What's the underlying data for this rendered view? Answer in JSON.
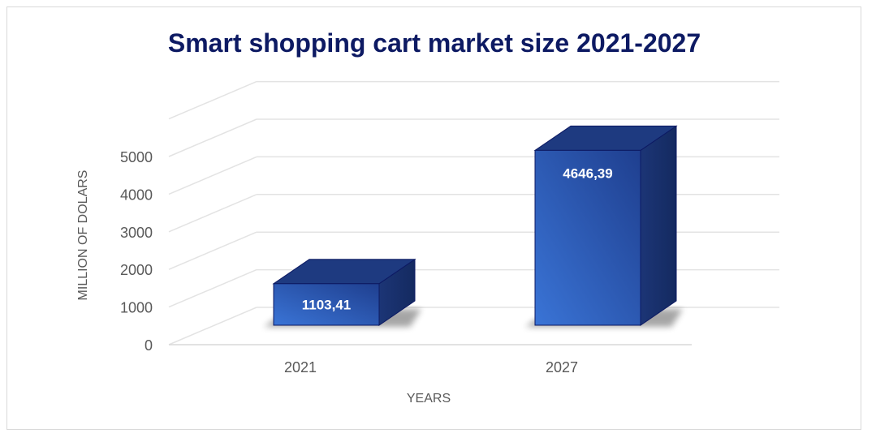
{
  "chart_data": {
    "type": "bar",
    "title": "Smart shopping cart market size 2021-2027",
    "xlabel": "YEARS",
    "ylabel": "MILLION OF DOLARS",
    "categories": [
      "2021",
      "2027"
    ],
    "values": [
      1103.41,
      4646.39
    ],
    "value_labels": [
      "1103,41",
      "4646,39"
    ],
    "ylim": [
      0,
      5000
    ],
    "yticks": [
      "0",
      "1000",
      "2000",
      "3000",
      "4000",
      "5000"
    ],
    "grid": true,
    "style": "3d",
    "bar_color": "#2f5fb8"
  }
}
